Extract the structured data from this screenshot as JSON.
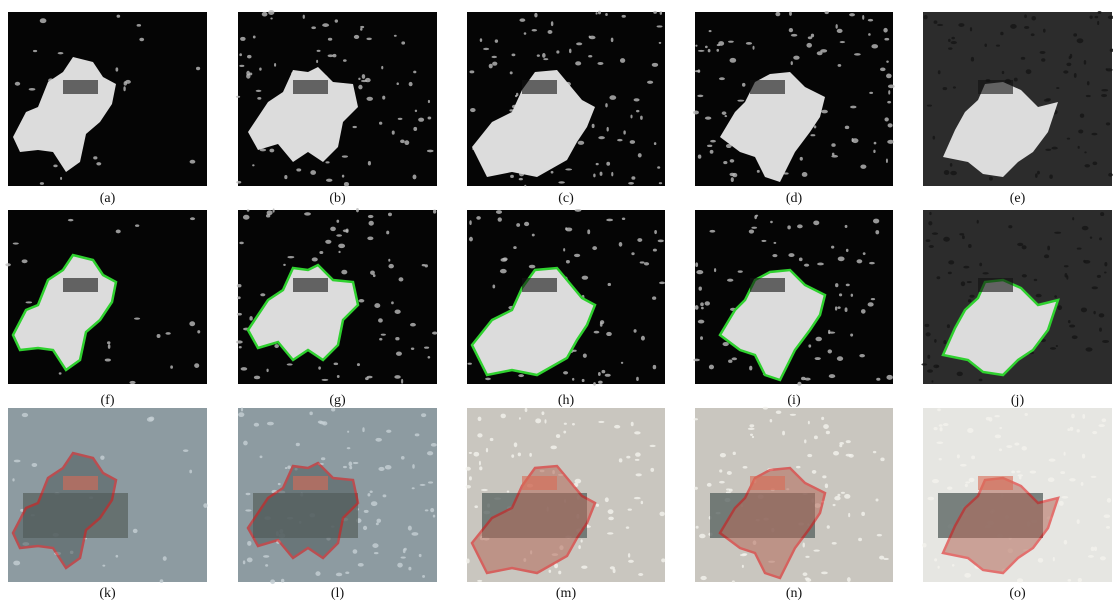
{
  "panels": [
    {
      "label": "(a)"
    },
    {
      "label": "(b)"
    },
    {
      "label": "(c)"
    },
    {
      "label": "(d)"
    },
    {
      "label": "(e)"
    },
    {
      "label": "(f)"
    },
    {
      "label": "(g)"
    },
    {
      "label": "(h)"
    },
    {
      "label": "(i)"
    },
    {
      "label": "(j)"
    },
    {
      "label": "(k)"
    },
    {
      "label": "(l)"
    },
    {
      "label": "(m)"
    },
    {
      "label": "(n)"
    },
    {
      "label": "(o)"
    }
  ]
}
